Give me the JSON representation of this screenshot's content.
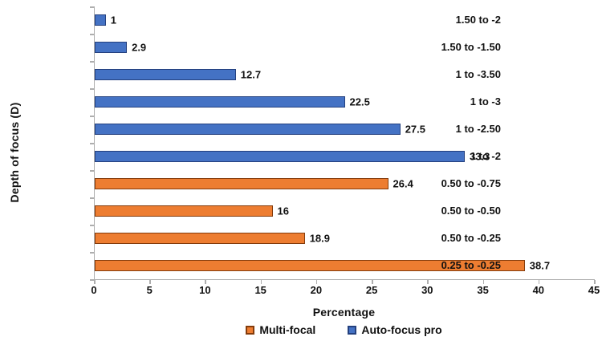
{
  "chart_data": {
    "type": "bar",
    "orientation": "horizontal",
    "title": "",
    "xlabel": "Percentage",
    "ylabel": "Depth of focus (D)",
    "xlim": [
      0,
      45
    ],
    "xticks": [
      0,
      5,
      10,
      15,
      20,
      25,
      30,
      35,
      40,
      45
    ],
    "grid": false,
    "legend_position": "bottom",
    "categories": [
      "1.50 to -2",
      "1.50 to -1.50",
      "1 to -3.50",
      "1 to -3",
      "1 to -2.50",
      "1 to -2",
      "0.50 to -0.75",
      "0.50 to -0.50",
      "0.50 to -0.25",
      "0.25 to -0.25"
    ],
    "values": [
      1,
      2.9,
      12.7,
      22.5,
      27.5,
      33.3,
      26.4,
      16,
      18.9,
      38.7
    ],
    "value_labels": [
      "1",
      "2.9",
      "12.7",
      "22.5",
      "27.5",
      "33.3",
      "26.4",
      "16",
      "18.9",
      "38.7"
    ],
    "bar_series": [
      "Auto-focus pro",
      "Auto-focus pro",
      "Auto-focus pro",
      "Auto-focus pro",
      "Auto-focus pro",
      "Auto-focus pro",
      "Multi-focal",
      "Multi-focal",
      "Multi-focal",
      "Multi-focal"
    ],
    "series": [
      {
        "name": "Multi-focal",
        "fill": "#ED7D31",
        "border": "#843C0C"
      },
      {
        "name": "Auto-focus pro",
        "fill": "#4472C4",
        "border": "#24407E"
      }
    ]
  },
  "colors": {
    "axis_line": "#AEAEAE",
    "text": "#111111"
  }
}
